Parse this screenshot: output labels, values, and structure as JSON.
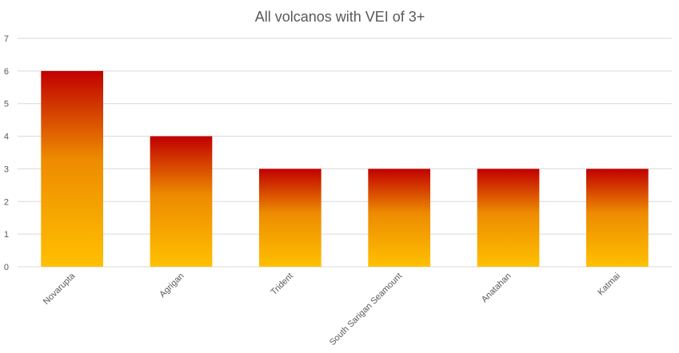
{
  "chart_data": {
    "type": "bar",
    "title": "All volcanos with VEI of 3+",
    "xlabel": "",
    "ylabel": "",
    "categories": [
      "Novarupta",
      "Agrigan",
      "Trident",
      "South Sarigan Seamount",
      "Anatahan",
      "Katmai"
    ],
    "values": [
      6,
      4,
      3,
      3,
      3,
      3
    ],
    "ylim": [
      0,
      7
    ],
    "yticks": [
      "0",
      "1",
      "2",
      "3",
      "4",
      "5",
      "6",
      "7"
    ],
    "grid": true,
    "legend": "none",
    "colors": {
      "bar_top": "#c00000",
      "bar_mid": "#ed8b00",
      "bar_bottom": "#ffc000",
      "grid": "#d9d9d9",
      "text": "#595959"
    }
  }
}
